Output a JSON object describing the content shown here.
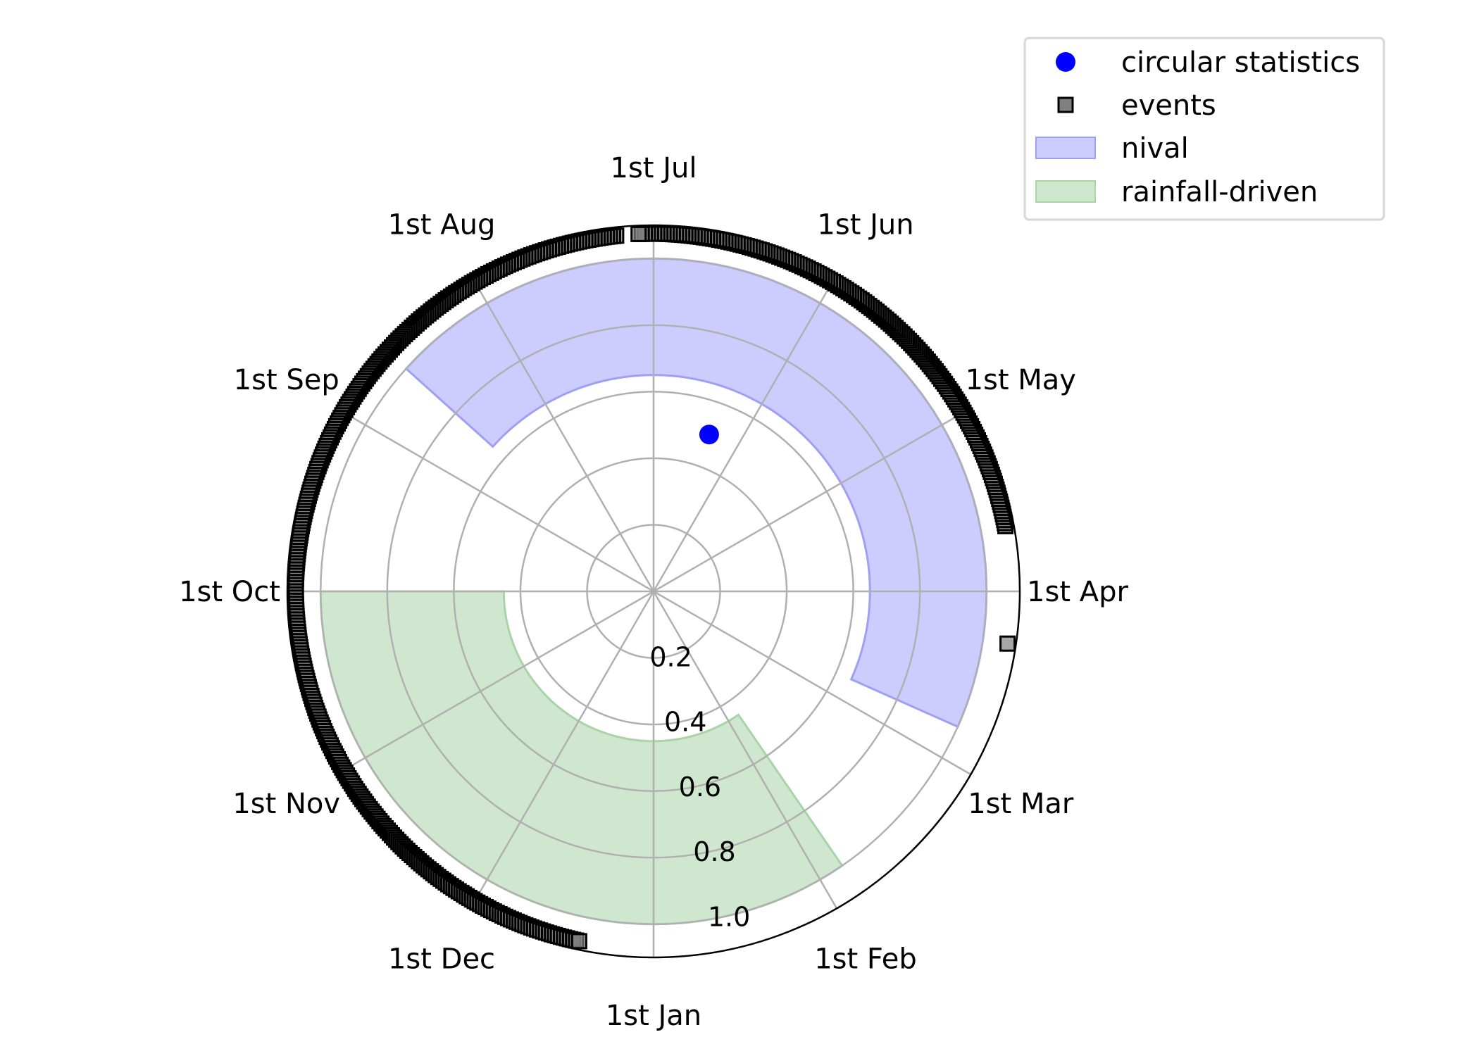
{
  "chart_data": {
    "type": "polar",
    "title": "",
    "angular_ticks": [
      {
        "label": "1st Jul",
        "month": 6
      },
      {
        "label": "1st Aug",
        "month": 7
      },
      {
        "label": "1st Sep",
        "month": 8
      },
      {
        "label": "1st Oct",
        "month": 9
      },
      {
        "label": "1st Nov",
        "month": 10
      },
      {
        "label": "1st Dec",
        "month": 11
      },
      {
        "label": "1st Jan",
        "month": 0
      },
      {
        "label": "1st Feb",
        "month": 1
      },
      {
        "label": "1st Mar",
        "month": 2
      },
      {
        "label": "1st Apr",
        "month": 3
      },
      {
        "label": "1st May",
        "month": 4
      },
      {
        "label": "1st Jun",
        "month": 5
      }
    ],
    "radial_ticks": [
      {
        "label": "0.2",
        "value": 0.2
      },
      {
        "label": "0.4",
        "value": 0.4
      },
      {
        "label": "0.6",
        "value": 0.6
      },
      {
        "label": "0.8",
        "value": 0.8
      },
      {
        "label": "1.0",
        "value": 1.0
      }
    ],
    "rlim": [
      0,
      1.1
    ],
    "grid": true,
    "legend": {
      "position": "top-right",
      "entries": [
        {
          "label": "circular statistics",
          "marker": "circle",
          "color": "#0000ff"
        },
        {
          "label": "events",
          "marker": "square",
          "color": "#808080"
        },
        {
          "label": "nival",
          "marker": "patch",
          "color": "#ccccff"
        },
        {
          "label": "rainfall-driven",
          "marker": "patch",
          "color": "#cfe6cf"
        }
      ]
    },
    "regions": [
      {
        "name": "nival",
        "start_month": 2.2,
        "end_month": 7.6,
        "r_inner": 0.65,
        "r_outer": 1.0,
        "color": "#ccccff",
        "edge": "#9f9ff5"
      },
      {
        "name": "rainfall-driven",
        "start_month": 9.0,
        "end_month": 13.15,
        "r_inner": 0.45,
        "r_outer": 1.0,
        "color": "#cfe6cf",
        "edge": "#a8d4a8"
      }
    ],
    "circular_statistics": {
      "month": 5.35,
      "r": 0.5,
      "color": "#0000ff"
    },
    "events": {
      "r": 1.1,
      "color": "#808080",
      "arcs": [
        {
          "start_month": 3.35,
          "end_month": 6.08
        },
        {
          "start_month": 6.2,
          "end_month": 11.6
        }
      ],
      "points": [
        {
          "month": 2.72
        }
      ]
    }
  }
}
